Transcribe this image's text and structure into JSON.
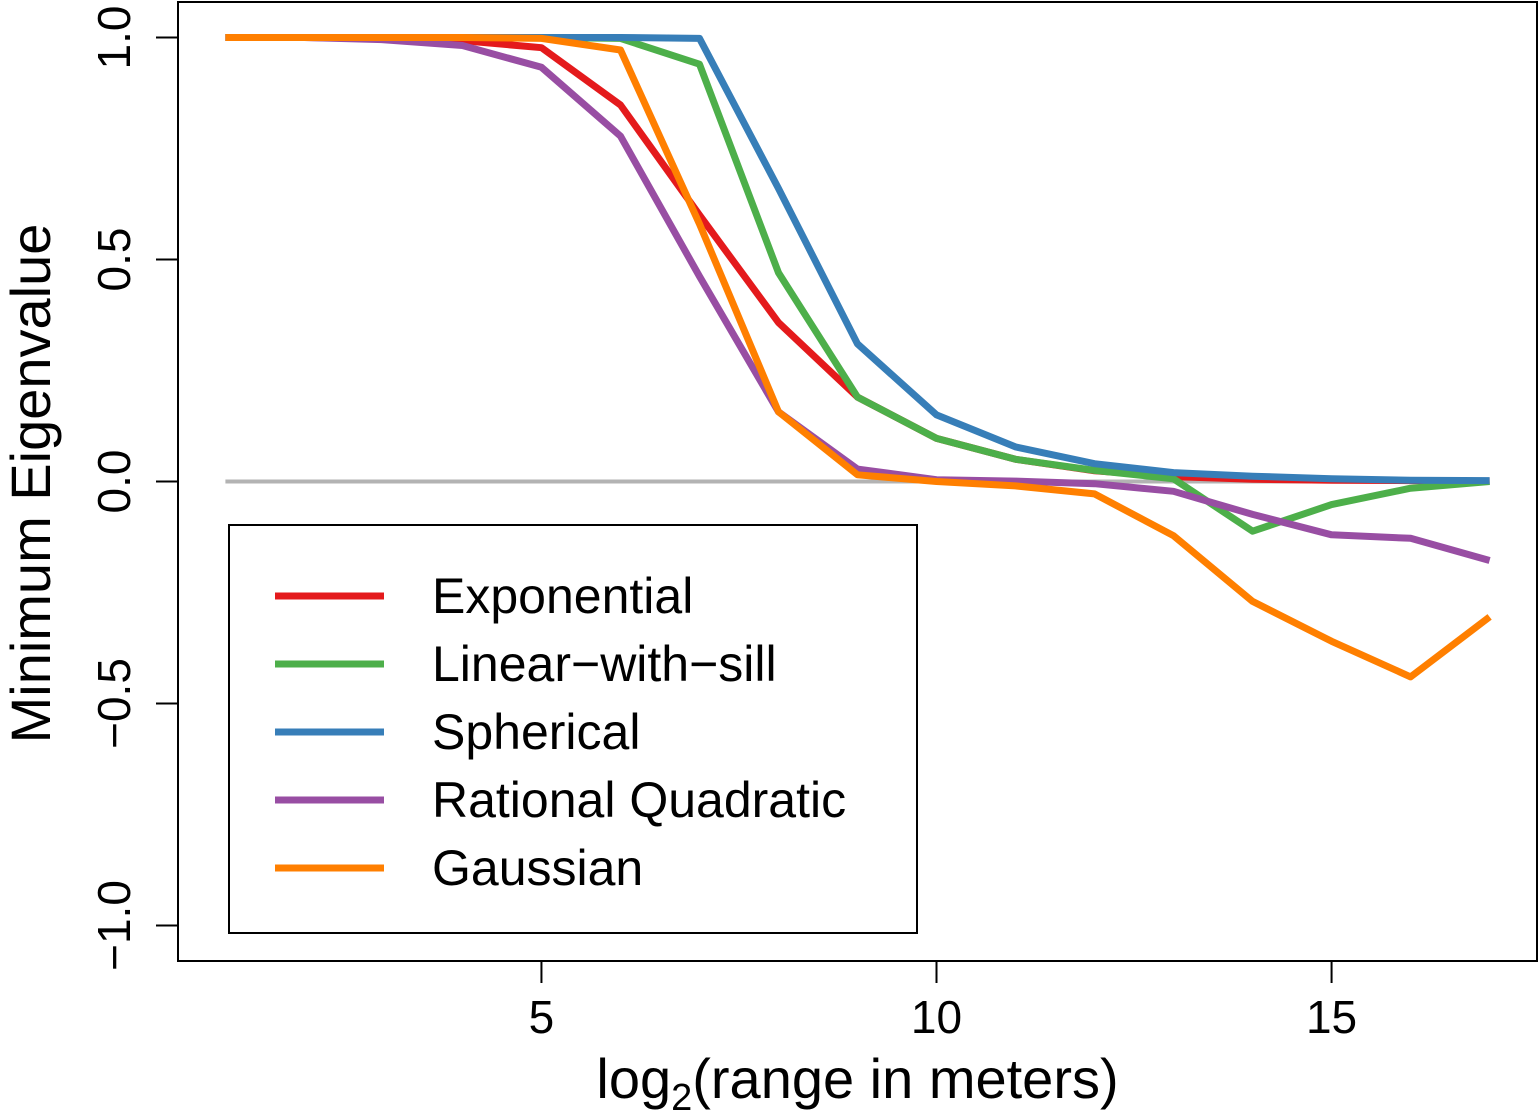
{
  "chart_data": {
    "type": "line",
    "title": "",
    "xlabel_main": "log",
    "xlabel_sub": "2",
    "xlabel_rest": "(range in meters)",
    "ylabel": "Minimum Eigenvalue",
    "xlim": [
      0.4,
      17.6
    ],
    "ylim": [
      -1.08,
      1.08
    ],
    "xticks": [
      5,
      10,
      15
    ],
    "xtick_labels": [
      "5",
      "10",
      "15"
    ],
    "yticks": [
      -1.0,
      -0.5,
      0.0,
      0.5,
      1.0
    ],
    "ytick_labels": [
      "−1.0",
      "−0.5",
      "0.0",
      "0.5",
      "1.0"
    ],
    "reference_line": {
      "y": 0,
      "color": "#b3b3b3"
    },
    "grid": false,
    "legend_position": "bottom-left",
    "x": [
      1,
      2,
      3,
      4,
      5,
      6,
      7,
      8,
      9,
      10,
      11,
      12,
      13,
      14,
      15,
      16,
      17
    ],
    "series": [
      {
        "name": "Exponential",
        "color": "#e41a1c",
        "values": [
          1.0,
          1.0,
          0.998,
          0.993,
          0.977,
          0.848,
          0.6,
          0.358,
          0.19,
          0.097,
          0.05,
          0.024,
          0.011,
          0.005,
          0.003,
          0.002,
          0.001
        ]
      },
      {
        "name": "Linear−with−sill",
        "color": "#4daf4a",
        "values": [
          1.0,
          1.0,
          1.0,
          1.0,
          1.0,
          0.998,
          0.94,
          0.47,
          0.19,
          0.097,
          0.05,
          0.025,
          0.006,
          -0.112,
          -0.052,
          -0.015,
          0.0
        ]
      },
      {
        "name": "Spherical",
        "color": "#377eb8",
        "values": [
          1.0,
          1.0,
          1.0,
          1.0,
          1.0,
          1.0,
          0.998,
          0.66,
          0.31,
          0.15,
          0.078,
          0.04,
          0.02,
          0.012,
          0.006,
          0.003,
          0.002
        ]
      },
      {
        "name": "Rational Quadratic",
        "color": "#984ea3",
        "values": [
          1.0,
          1.0,
          0.995,
          0.982,
          0.933,
          0.778,
          0.462,
          0.157,
          0.028,
          0.004,
          0.001,
          -0.005,
          -0.022,
          -0.074,
          -0.12,
          -0.128,
          -0.178
        ]
      },
      {
        "name": "Gaussian",
        "color": "#ff7f00",
        "values": [
          1.0,
          1.0,
          1.0,
          1.0,
          0.998,
          0.972,
          0.58,
          0.157,
          0.015,
          0.0,
          -0.01,
          -0.028,
          -0.122,
          -0.27,
          -0.36,
          -0.44,
          -0.305
        ]
      }
    ]
  }
}
